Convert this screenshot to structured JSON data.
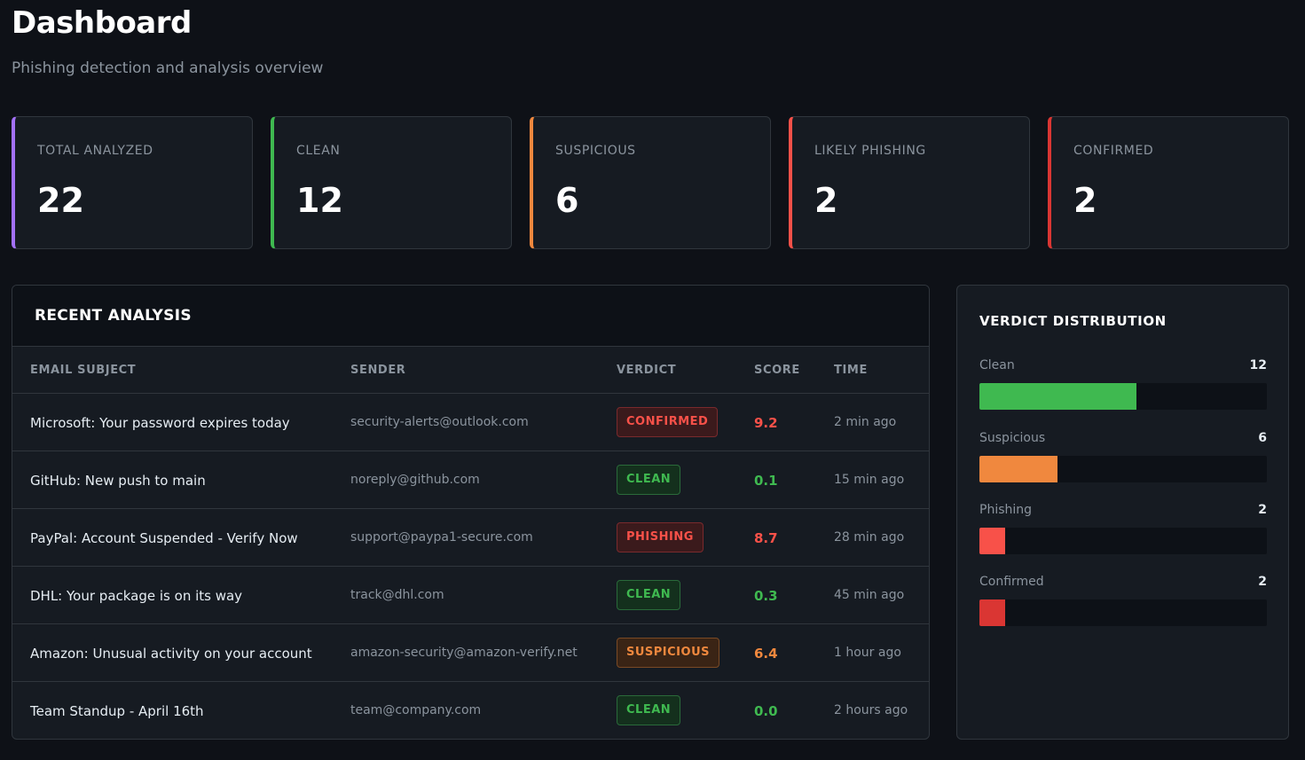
{
  "header": {
    "title": "Dashboard",
    "subtitle": "Phishing detection and analysis overview"
  },
  "stats": [
    {
      "label": "TOTAL ANALYZED",
      "value": "22",
      "color": "#a371f7"
    },
    {
      "label": "CLEAN",
      "value": "12",
      "color": "#3fb950"
    },
    {
      "label": "SUSPICIOUS",
      "value": "6",
      "color": "#f0883e"
    },
    {
      "label": "LIKELY PHISHING",
      "value": "2",
      "color": "#f85149"
    },
    {
      "label": "CONFIRMED",
      "value": "2",
      "color": "#da3633"
    }
  ],
  "recent": {
    "title": "RECENT ANALYSIS",
    "columns": [
      "EMAIL SUBJECT",
      "SENDER",
      "VERDICT",
      "SCORE",
      "TIME"
    ],
    "rows": [
      {
        "subject": "Microsoft: Your password expires today",
        "sender": "security-alerts@outlook.com",
        "verdict": "CONFIRMED",
        "verdict_type": "confirmed",
        "score": "9.2",
        "score_color": "red",
        "time": "2 min ago"
      },
      {
        "subject": "GitHub: New push to main",
        "sender": "noreply@github.com",
        "verdict": "CLEAN",
        "verdict_type": "clean",
        "score": "0.1",
        "score_color": "green",
        "time": "15 min ago"
      },
      {
        "subject": "PayPal: Account Suspended - Verify Now",
        "sender": "support@paypa1-secure.com",
        "verdict": "PHISHING",
        "verdict_type": "phishing",
        "score": "8.7",
        "score_color": "red",
        "time": "28 min ago"
      },
      {
        "subject": "DHL: Your package is on its way",
        "sender": "track@dhl.com",
        "verdict": "CLEAN",
        "verdict_type": "clean",
        "score": "0.3",
        "score_color": "green",
        "time": "45 min ago"
      },
      {
        "subject": "Amazon: Unusual activity on your account",
        "sender": "amazon-security@amazon-verify.net",
        "verdict": "SUSPICIOUS",
        "verdict_type": "suspicious",
        "score": "6.4",
        "score_color": "orange",
        "time": "1 hour ago"
      },
      {
        "subject": "Team Standup - April 16th",
        "sender": "team@company.com",
        "verdict": "CLEAN",
        "verdict_type": "clean",
        "score": "0.0",
        "score_color": "green",
        "time": "2 hours ago"
      }
    ]
  },
  "distribution": {
    "title": "VERDICT DISTRIBUTION",
    "total": 22,
    "items": [
      {
        "label": "Clean",
        "count": "12",
        "value": 12,
        "color": "#3fb950"
      },
      {
        "label": "Suspicious",
        "count": "6",
        "value": 6,
        "color": "#f0883e"
      },
      {
        "label": "Phishing",
        "count": "2",
        "value": 2,
        "color": "#f85149"
      },
      {
        "label": "Confirmed",
        "count": "2",
        "value": 2,
        "color": "#da3633"
      }
    ]
  }
}
